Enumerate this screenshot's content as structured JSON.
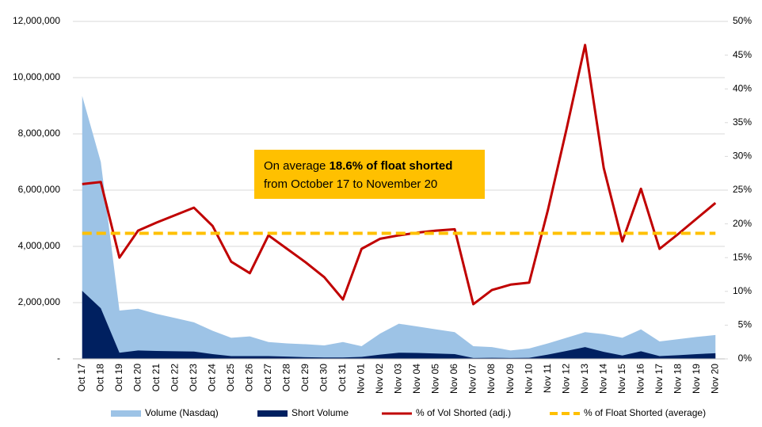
{
  "chart_data": {
    "type": "area-line",
    "categories": [
      "Oct 17",
      "Oct 18",
      "Oct 19",
      "Oct 20",
      "Oct 21",
      "Oct 22",
      "Oct 23",
      "Oct 24",
      "Oct 25",
      "Oct 26",
      "Oct 27",
      "Oct 28",
      "Oct 29",
      "Oct 30",
      "Oct 31",
      "Nov 01",
      "Nov 02",
      "Nov 03",
      "Nov 04",
      "Nov 05",
      "Nov 06",
      "Nov 07",
      "Nov 08",
      "Nov 09",
      "Nov 10",
      "Nov 11",
      "Nov 12",
      "Nov 13",
      "Nov 14",
      "Nov 15",
      "Nov 16",
      "Nov 17",
      "Nov 18",
      "Nov 19",
      "Nov 20"
    ],
    "series": [
      {
        "name": "Volume (Nasdaq)",
        "kind": "area",
        "color": "#9dc3e6",
        "values": [
          9350000,
          7000000,
          1720000,
          1780000,
          1600000,
          1450000,
          1300000,
          1000000,
          750000,
          800000,
          600000,
          550000,
          520000,
          480000,
          600000,
          450000,
          900000,
          1250000,
          1150000,
          1050000,
          950000,
          450000,
          420000,
          300000,
          370000,
          550000,
          750000,
          950000,
          880000,
          750000,
          1050000,
          620000,
          700000,
          780000,
          850000
        ]
      },
      {
        "name": "Short Volume",
        "kind": "area",
        "color": "#002060",
        "values": [
          2420000,
          1800000,
          220000,
          300000,
          280000,
          270000,
          260000,
          170000,
          100000,
          100000,
          100000,
          80000,
          60000,
          50000,
          50000,
          70000,
          150000,
          220000,
          210000,
          190000,
          170000,
          30000,
          40000,
          30000,
          40000,
          150000,
          280000,
          420000,
          250000,
          120000,
          270000,
          100000,
          130000,
          170000,
          200000
        ]
      },
      {
        "name": "% of Vol Shorted (adj.)",
        "kind": "line",
        "axis": "y2",
        "color": "#c00000",
        "values": [
          25.9,
          26.2,
          15.0,
          19.0,
          20.2,
          21.3,
          22.4,
          19.7,
          14.4,
          12.7,
          18.3,
          16.3,
          14.3,
          12.1,
          8.8,
          16.3,
          17.8,
          18.3,
          18.7,
          19.0,
          19.2,
          8.1,
          10.2,
          11.0,
          11.3,
          22.0,
          34.0,
          46.5,
          28.3,
          17.4,
          25.2,
          16.3,
          18.5,
          20.8,
          23.1
        ]
      },
      {
        "name": "% of Float Shorted (average)",
        "kind": "dashed",
        "axis": "y2",
        "color": "#ffc000",
        "values": [
          18.6,
          18.6,
          18.6,
          18.6,
          18.6,
          18.6,
          18.6,
          18.6,
          18.6,
          18.6,
          18.6,
          18.6,
          18.6,
          18.6,
          18.6,
          18.6,
          18.6,
          18.6,
          18.6,
          18.6,
          18.6,
          18.6,
          18.6,
          18.6,
          18.6,
          18.6,
          18.6,
          18.6,
          18.6,
          18.6,
          18.6,
          18.6,
          18.6,
          18.6,
          18.6
        ]
      }
    ],
    "ylim": [
      0,
      12000000
    ],
    "yticks": [
      {
        "value": 0,
        "label": "-"
      },
      {
        "value": 2000000,
        "label": "2,000,000"
      },
      {
        "value": 4000000,
        "label": "4,000,000"
      },
      {
        "value": 6000000,
        "label": "6,000,000"
      },
      {
        "value": 8000000,
        "label": "8,000,000"
      },
      {
        "value": 10000000,
        "label": "10,000,000"
      },
      {
        "value": 12000000,
        "label": "12,000,000"
      }
    ],
    "y2lim": [
      0,
      50
    ],
    "y2ticks": [
      {
        "value": 0,
        "label": "0%"
      },
      {
        "value": 5,
        "label": "5%"
      },
      {
        "value": 10,
        "label": "10%"
      },
      {
        "value": 15,
        "label": "15%"
      },
      {
        "value": 20,
        "label": "20%"
      },
      {
        "value": 25,
        "label": "25%"
      },
      {
        "value": 30,
        "label": "30%"
      },
      {
        "value": 35,
        "label": "35%"
      },
      {
        "value": 40,
        "label": "40%"
      },
      {
        "value": 45,
        "label": "45%"
      },
      {
        "value": 50,
        "label": "50%"
      }
    ],
    "grid": true,
    "annotation": [
      "On average ",
      "18.6% of float shorted",
      "from October 17 to November 20"
    ]
  }
}
